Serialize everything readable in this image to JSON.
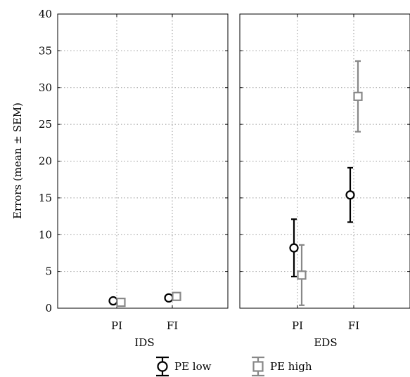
{
  "chart_data": [
    {
      "type": "scatter",
      "panel": "IDS",
      "xlabel": "IDS",
      "ylabel": "Errors (mean ± SEM)",
      "categories": [
        "PI",
        "FI"
      ],
      "ylim": [
        0,
        40
      ],
      "yticks": [
        0,
        5,
        10,
        15,
        20,
        25,
        30,
        35,
        40
      ],
      "grid": true,
      "series": [
        {
          "name": "PE low",
          "values": [
            1.0,
            1.4
          ],
          "errors": [
            0.2,
            0.2
          ]
        },
        {
          "name": "PE high",
          "values": [
            0.8,
            1.6
          ],
          "errors": [
            0.2,
            0.2
          ]
        }
      ]
    },
    {
      "type": "scatter",
      "panel": "EDS",
      "xlabel": "EDS",
      "categories": [
        "PI",
        "FI"
      ],
      "ylim": [
        0,
        40
      ],
      "yticks": [
        0,
        5,
        10,
        15,
        20,
        25,
        30,
        35,
        40
      ],
      "grid": true,
      "series": [
        {
          "name": "PE low",
          "values": [
            8.2,
            15.4
          ],
          "errors": [
            3.9,
            3.7
          ]
        },
        {
          "name": "PE high",
          "values": [
            4.5,
            28.8
          ],
          "errors": [
            4.1,
            4.8
          ]
        }
      ]
    }
  ],
  "legend": {
    "placement": "bottom",
    "items": [
      {
        "label": "PE low",
        "marker": "circle",
        "color": "#000000"
      },
      {
        "label": "PE high",
        "marker": "square",
        "color": "#888888"
      }
    ]
  },
  "colors": {
    "pe_low": "#000000",
    "pe_high": "#888888",
    "grid": "#999999"
  }
}
